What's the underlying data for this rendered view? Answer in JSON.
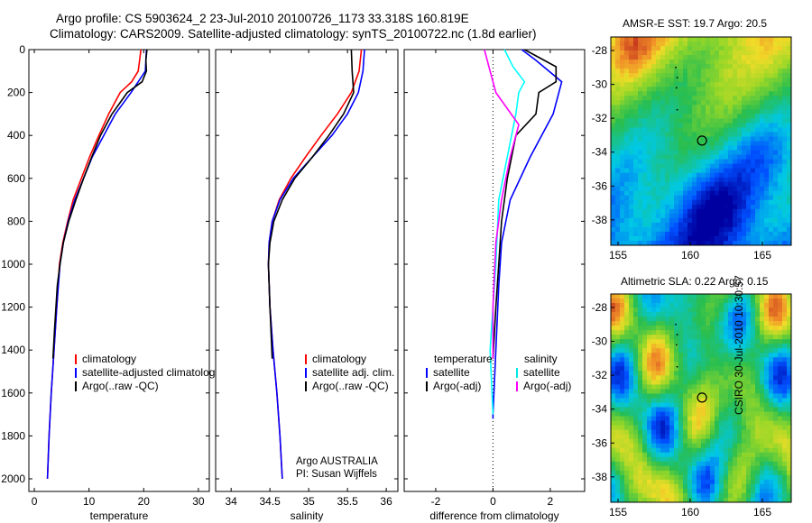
{
  "title": {
    "line1": "Argo profile: CS 5903624_2 23-Jul-2010 20100726_1173 33.318S 160.819E",
    "line2": "Climatology: CARS2009. Satellite-adjusted climatology: synTS_20100722.nc (1.8d earlier)"
  },
  "credit": "CSIRO 30-Jul-2010 10:30:57",
  "colors": {
    "climatology": "#ff0000",
    "satellite": "#0000ff",
    "argo": "#000000",
    "sat_salt": "#00ffff",
    "argo_salt": "#ff00ff"
  },
  "chart_data": [
    {
      "type": "line",
      "xlabel": "temperature",
      "ylabel": "",
      "xlim": [
        -1,
        32
      ],
      "ylim": [
        2080,
        0
      ],
      "y_reversed": true,
      "xticks": [
        "0",
        "10",
        "20",
        "30"
      ],
      "yticks": [
        "0",
        "200",
        "400",
        "600",
        "800",
        "1000",
        "1200",
        "1400",
        "1600",
        "1800",
        "2000"
      ],
      "legend": {
        "placement": "lower-left",
        "entries": [
          "climatology",
          "satellite-adjusted climatolog",
          "Argo(..raw -QC)"
        ]
      },
      "series": [
        {
          "name": "climatology",
          "points": [
            [
              19.5,
              0
            ],
            [
              19.0,
              100
            ],
            [
              17.8,
              150
            ],
            [
              15.7,
              200
            ],
            [
              13.6,
              300
            ],
            [
              11.8,
              400
            ],
            [
              10.1,
              500
            ],
            [
              8.6,
              600
            ],
            [
              7.1,
              700
            ],
            [
              6.1,
              800
            ],
            [
              5.2,
              900
            ],
            [
              4.6,
              1000
            ],
            [
              4.1,
              1200
            ],
            [
              3.6,
              1400
            ],
            [
              3.1,
              1600
            ],
            [
              2.7,
              1800
            ],
            [
              2.4,
              2000
            ]
          ]
        },
        {
          "name": "satellite-adjusted climatolog",
          "points": [
            [
              20.5,
              0
            ],
            [
              20.3,
              100
            ],
            [
              19.0,
              150
            ],
            [
              17.7,
              200
            ],
            [
              14.8,
              300
            ],
            [
              12.7,
              400
            ],
            [
              10.6,
              500
            ],
            [
              9.0,
              600
            ],
            [
              7.4,
              700
            ],
            [
              6.2,
              800
            ],
            [
              5.3,
              900
            ],
            [
              4.7,
              1000
            ],
            [
              4.1,
              1200
            ],
            [
              3.6,
              1400
            ],
            [
              3.1,
              1600
            ],
            [
              2.7,
              1800
            ],
            [
              2.4,
              2000
            ]
          ]
        },
        {
          "name": "Argo(..raw -QC)",
          "points": [
            [
              20.6,
              0
            ],
            [
              20.4,
              50
            ],
            [
              20.5,
              100
            ],
            [
              19.7,
              150
            ],
            [
              17.0,
              200
            ],
            [
              14.2,
              300
            ],
            [
              12.1,
              400
            ],
            [
              10.5,
              500
            ],
            [
              9.0,
              600
            ],
            [
              7.6,
              700
            ],
            [
              6.3,
              800
            ],
            [
              5.3,
              900
            ],
            [
              4.7,
              1000
            ],
            [
              4.2,
              1100
            ],
            [
              3.7,
              1300
            ],
            [
              3.4,
              1440
            ]
          ]
        }
      ]
    },
    {
      "type": "line",
      "xlabel": "salinity",
      "ylabel": "",
      "xlim": [
        33.8,
        36.15
      ],
      "ylim": [
        2080,
        0
      ],
      "y_reversed": true,
      "xticks": [
        "34",
        "34.5",
        "35",
        "35.5",
        "36"
      ],
      "legend": {
        "placement": "lower-left",
        "entries": [
          "climatology",
          "satellite adj. clim.",
          "Argo(..raw -QC)"
        ]
      },
      "series": [
        {
          "name": "climatology",
          "points": [
            [
              35.68,
              0
            ],
            [
              35.65,
              100
            ],
            [
              35.55,
              200
            ],
            [
              35.37,
              300
            ],
            [
              35.16,
              400
            ],
            [
              34.96,
              500
            ],
            [
              34.77,
              600
            ],
            [
              34.62,
              700
            ],
            [
              34.53,
              800
            ],
            [
              34.49,
              900
            ],
            [
              34.48,
              1000
            ],
            [
              34.5,
              1200
            ],
            [
              34.54,
              1400
            ],
            [
              34.59,
              1600
            ],
            [
              34.63,
              1800
            ],
            [
              34.66,
              2000
            ]
          ]
        },
        {
          "name": "satellite adj. clim.",
          "points": [
            [
              35.72,
              0
            ],
            [
              35.7,
              100
            ],
            [
              35.64,
              200
            ],
            [
              35.5,
              300
            ],
            [
              35.3,
              400
            ],
            [
              35.05,
              500
            ],
            [
              34.8,
              600
            ],
            [
              34.63,
              700
            ],
            [
              34.53,
              800
            ],
            [
              34.49,
              900
            ],
            [
              34.48,
              1000
            ],
            [
              34.5,
              1200
            ],
            [
              34.54,
              1400
            ],
            [
              34.59,
              1600
            ],
            [
              34.63,
              1800
            ],
            [
              34.66,
              2000
            ]
          ]
        },
        {
          "name": "Argo(..raw -QC)",
          "points": [
            [
              35.55,
              0
            ],
            [
              35.56,
              100
            ],
            [
              35.58,
              200
            ],
            [
              35.45,
              300
            ],
            [
              35.26,
              400
            ],
            [
              35.05,
              500
            ],
            [
              34.82,
              600
            ],
            [
              34.66,
              700
            ],
            [
              34.55,
              800
            ],
            [
              34.5,
              900
            ],
            [
              34.48,
              1000
            ],
            [
              34.5,
              1200
            ],
            [
              34.53,
              1440
            ]
          ]
        }
      ]
    },
    {
      "type": "line",
      "xlabel": "difference from climatology",
      "ylabel": "",
      "xlim": [
        -3.1,
        3.2
      ],
      "ylim": [
        2080,
        0
      ],
      "y_reversed": true,
      "xticks": [
        "-2",
        "0",
        "2"
      ],
      "legend": {
        "placement": "lower-center",
        "headers": [
          "temperature",
          "salinity"
        ],
        "entries": [
          "satellite",
          "Argo(-adj)",
          "satellite",
          "Argo(-adj)"
        ]
      },
      "series": [
        {
          "name": "satellite",
          "group": "temperature",
          "points": [
            [
              1.0,
              0
            ],
            [
              1.5,
              50
            ],
            [
              2.4,
              150
            ],
            [
              2.1,
              300
            ],
            [
              1.3,
              500
            ],
            [
              0.6,
              700
            ],
            [
              0.3,
              900
            ],
            [
              0.2,
              1100
            ],
            [
              0.1,
              1400
            ],
            [
              0.0,
              1700
            ],
            [
              0.0,
              1720
            ]
          ]
        },
        {
          "name": "Argo(-adj)",
          "group": "temperature",
          "points": [
            [
              1.1,
              0
            ],
            [
              2.2,
              80
            ],
            [
              2.2,
              150
            ],
            [
              1.6,
              200
            ],
            [
              1.5,
              300
            ],
            [
              0.8,
              400
            ],
            [
              0.5,
              600
            ],
            [
              0.3,
              800
            ],
            [
              0.2,
              1000
            ],
            [
              0.1,
              1200
            ],
            [
              0.0,
              1440
            ]
          ]
        },
        {
          "name": "satellite",
          "group": "salinity",
          "points": [
            [
              0.4,
              0
            ],
            [
              0.7,
              80
            ],
            [
              1.1,
              150
            ],
            [
              0.9,
              200
            ],
            [
              0.8,
              300
            ],
            [
              0.5,
              500
            ],
            [
              0.2,
              700
            ],
            [
              0.1,
              1000
            ],
            [
              0.0,
              1200
            ],
            [
              -0.1,
              1400
            ],
            [
              0.0,
              1700
            ]
          ]
        },
        {
          "name": "Argo(-adj)",
          "group": "salinity",
          "points": [
            [
              -0.3,
              0
            ],
            [
              -0.1,
              100
            ],
            [
              0.1,
              200
            ],
            [
              0.9,
              350
            ],
            [
              0.6,
              500
            ],
            [
              0.3,
              700
            ],
            [
              0.1,
              900
            ],
            [
              0.0,
              1200
            ],
            [
              0.0,
              1440
            ]
          ]
        }
      ]
    },
    {
      "type": "heatmap",
      "title": "AMSR-E SST: 19.7 Argo: 20.5",
      "xlim": [
        154.5,
        167
      ],
      "ylim": [
        -39.5,
        -27.2
      ],
      "xticks": [
        "155",
        "160",
        "165"
      ],
      "yticks": [
        "-28",
        "-30",
        "-32",
        "-34",
        "-36",
        "-38"
      ],
      "marker": {
        "lon": 160.819,
        "lat": -33.318
      }
    },
    {
      "type": "heatmap",
      "title": "Altimetric SLA: 0.22 Argo: 0.15",
      "xlim": [
        154.5,
        167
      ],
      "ylim": [
        -39.5,
        -27.2
      ],
      "xticks": [
        "155",
        "160",
        "165"
      ],
      "yticks": [
        "-28",
        "-30",
        "-32",
        "-34",
        "-36",
        "-38"
      ],
      "marker": {
        "lon": 160.819,
        "lat": -33.318
      }
    }
  ],
  "footnote": {
    "line1": "Argo AUSTRALIA",
    "line2": "PI: Susan Wijffels"
  }
}
